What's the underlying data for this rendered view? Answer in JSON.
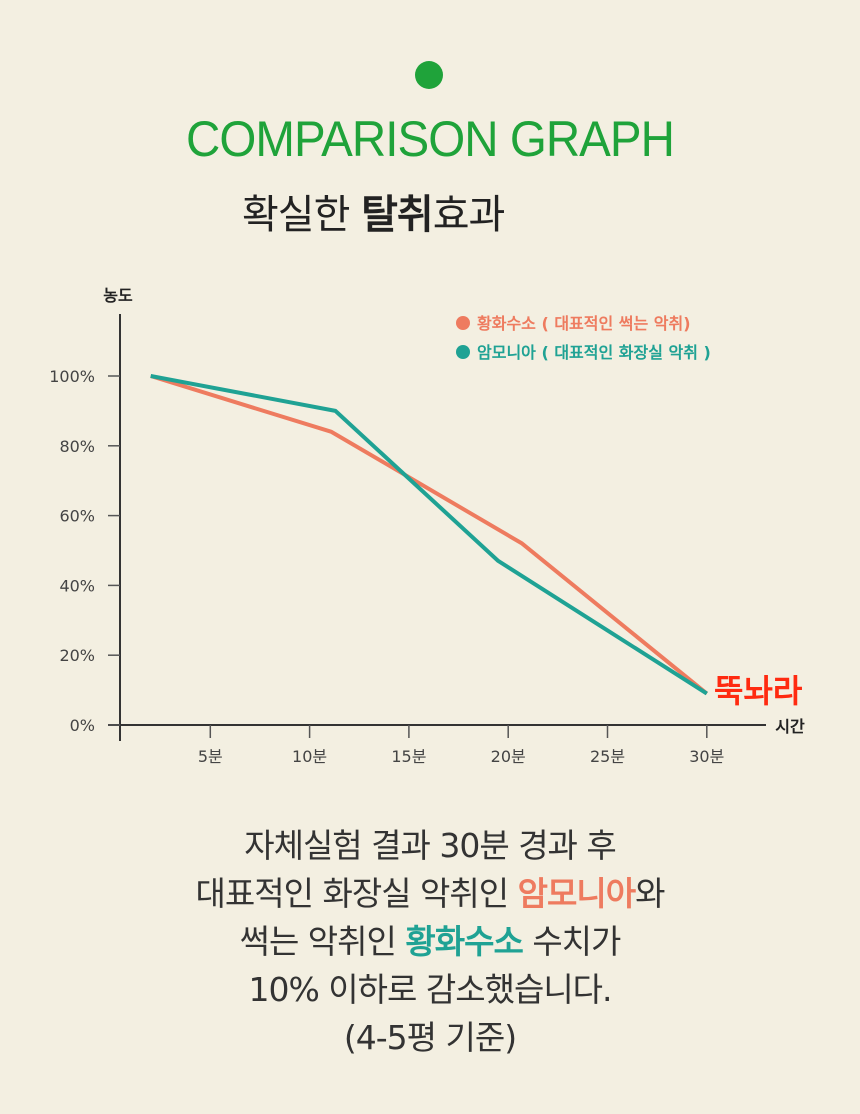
{
  "header": {
    "title": "COMPARISON GRAPH",
    "subtitle_pre": "확실한 ",
    "subtitle_bold": "탈취",
    "subtitle_post": "효과"
  },
  "chart_data": {
    "type": "line",
    "xlabel": "시간",
    "ylabel": "농도",
    "xlim": [
      0,
      33
    ],
    "ylim": [
      0,
      100
    ],
    "x_ticks": [
      5,
      10,
      15,
      20,
      25,
      30
    ],
    "x_tick_labels": [
      "5분",
      "10분",
      "15분",
      "20분",
      "25분",
      "30분"
    ],
    "y_ticks": [
      0,
      20,
      40,
      60,
      80,
      100
    ],
    "y_tick_labels": [
      "0%",
      "20%",
      "40%",
      "60%",
      "80%",
      "100%"
    ],
    "legend_placement": "top-right",
    "series": [
      {
        "name": "황화수소 ( 대표적인 썩는 악취)",
        "color": "#ee7b5f",
        "x": [
          2,
          11.1,
          20.7,
          30
        ],
        "y": [
          100,
          84,
          52,
          9
        ]
      },
      {
        "name": "암모니아 ( 대표적인 화장실 악취 )",
        "color": "#1fa294",
        "x": [
          2,
          11.3,
          19.5,
          30
        ],
        "y": [
          100,
          90,
          47,
          9
        ]
      }
    ],
    "annotation": "뚝놔라",
    "annotation_color": "#ff2a10"
  },
  "footer": {
    "line1": "자체실험 결과 30분 경과 후",
    "line2_pre": "대표적인 화장실 악취인 ",
    "line2_hl": "암모니아",
    "line2_post": "와",
    "line3_pre": "썩는 악취인 ",
    "line3_hl": "황화수소",
    "line3_post": " 수치가",
    "line4": "10% 이하로 감소했습니다.",
    "line5": "(4-5평 기준)"
  }
}
